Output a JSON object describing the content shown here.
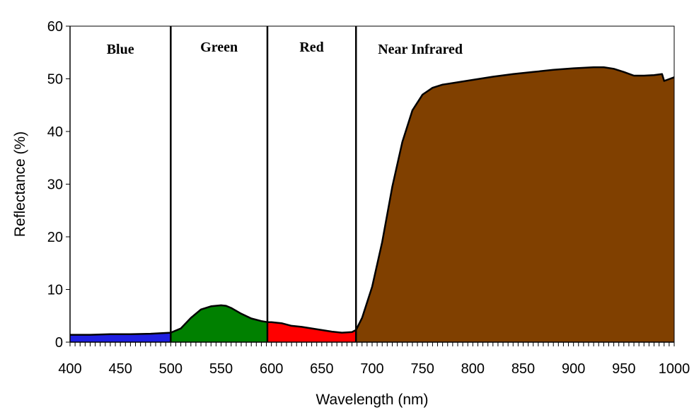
{
  "chart_data": {
    "type": "area",
    "title": "",
    "xlabel": "Wavelength (nm)",
    "ylabel": "Reflectance (%)",
    "xlim": [
      400,
      1000
    ],
    "ylim": [
      0,
      60
    ],
    "x_ticks": [
      "400",
      "450",
      "500",
      "550",
      "600",
      "650",
      "700",
      "750",
      "800",
      "850",
      "900",
      "950",
      "1000"
    ],
    "y_ticks": [
      "0",
      "10",
      "20",
      "30",
      "40",
      "50",
      "60"
    ],
    "grid": false,
    "legend": "none",
    "bands": [
      {
        "label": "Blue",
        "start": 400,
        "end": 500,
        "color": "#1f1fe0"
      },
      {
        "label": "Green",
        "start": 500,
        "end": 596,
        "color": "#008000"
      },
      {
        "label": "Red",
        "start": 596,
        "end": 684,
        "color": "#ff0000"
      },
      {
        "label": "Near Infrared",
        "start": 684,
        "end": 1000,
        "color": "#804000"
      }
    ],
    "series": [
      {
        "x": [
          400,
          420,
          440,
          460,
          480,
          500,
          510,
          520,
          530,
          540,
          550,
          555,
          560,
          570,
          580,
          590,
          596,
          600,
          610,
          620,
          630,
          640,
          650,
          660,
          670,
          680,
          684,
          690,
          700,
          710,
          720,
          730,
          740,
          750,
          760,
          770,
          780,
          800,
          820,
          840,
          860,
          880,
          900,
          920,
          930,
          940,
          950,
          960,
          970,
          980,
          988,
          990,
          1000
        ],
        "y": [
          1.4,
          1.4,
          1.5,
          1.5,
          1.6,
          1.8,
          2.6,
          4.6,
          6.2,
          6.8,
          7.0,
          6.9,
          6.5,
          5.4,
          4.5,
          4.0,
          3.8,
          3.8,
          3.6,
          3.1,
          2.9,
          2.6,
          2.3,
          2.0,
          1.8,
          1.9,
          2.3,
          4.6,
          10.5,
          19.0,
          29.5,
          38.0,
          44.0,
          47.0,
          48.3,
          48.9,
          49.2,
          49.8,
          50.4,
          50.9,
          51.3,
          51.7,
          52.0,
          52.2,
          52.2,
          51.9,
          51.3,
          50.6,
          50.6,
          50.7,
          50.9,
          49.6,
          50.3
        ]
      }
    ]
  }
}
